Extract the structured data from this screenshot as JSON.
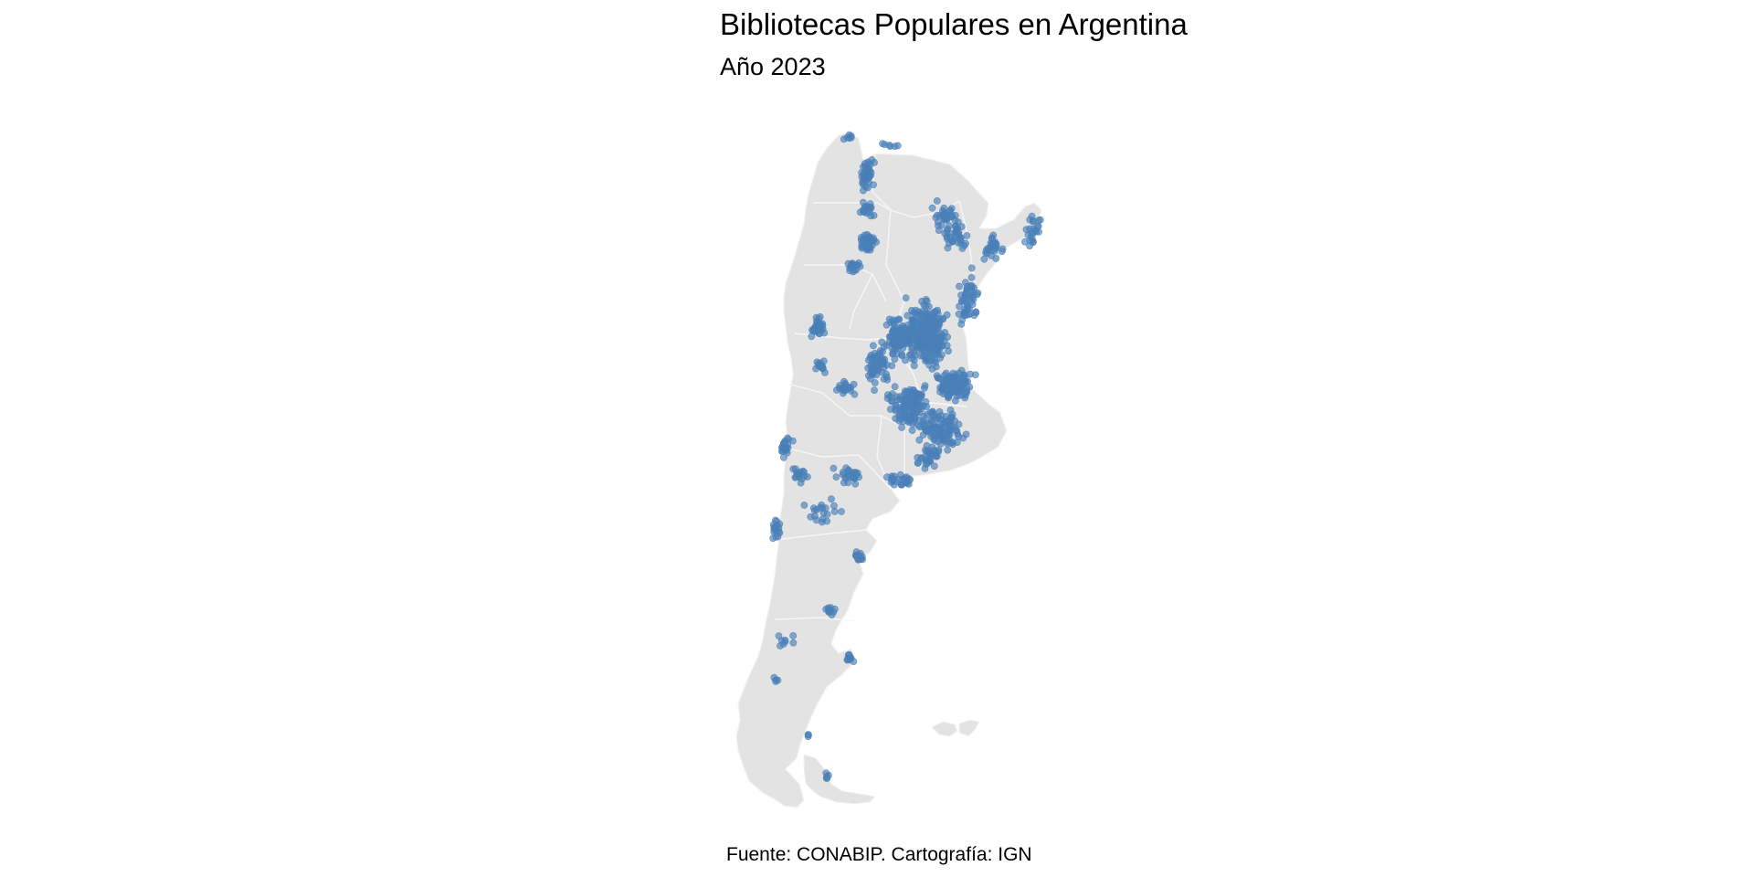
{
  "title": "Bibliotecas Populares en Argentina",
  "subtitle": "Año 2023",
  "caption": "Fuente: CONABIP. Cartografía: IGN",
  "colors": {
    "land": "#e3e3e3",
    "border": "#f4f4f4",
    "point": "#4a7fb8",
    "background": "#ffffff"
  }
}
